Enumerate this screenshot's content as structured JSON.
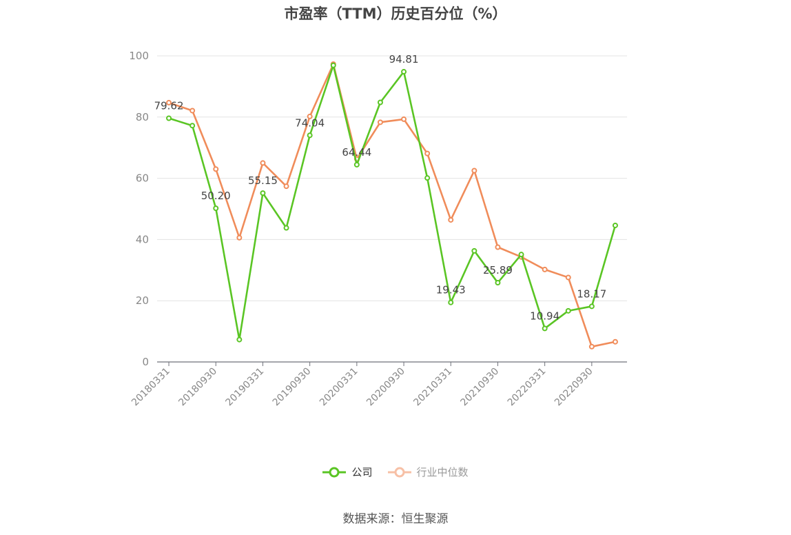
{
  "chart_data": {
    "type": "line",
    "title": "市盈率（TTM）历史百分位（%）",
    "source": "数据来源：恒生聚源",
    "ylim": [
      0,
      100
    ],
    "yticks": [
      0,
      20,
      40,
      60,
      80,
      100
    ],
    "grid": true,
    "legend_position": "bottom",
    "x": [
      "20180331",
      "20180630",
      "20180930",
      "20181231",
      "20190331",
      "20190630",
      "20190930",
      "20191231",
      "20200331",
      "20200630",
      "20200930",
      "20201231",
      "20210331",
      "20210630",
      "20210930",
      "20211231",
      "20220331",
      "20220630",
      "20220930",
      "20221231"
    ],
    "x_tick_labels": [
      "20180331",
      "20180930",
      "20190331",
      "20190930",
      "20200331",
      "20200930",
      "20210331",
      "20210930",
      "20220331",
      "20220930"
    ],
    "series": [
      {
        "name": "公司",
        "color": "#5ac524",
        "values": [
          79.62,
          77.2,
          50.2,
          7.3,
          55.15,
          43.8,
          74.04,
          96.9,
          64.44,
          84.8,
          94.81,
          60.1,
          19.43,
          36.3,
          25.89,
          35.1,
          10.94,
          16.7,
          18.17,
          44.6
        ],
        "labels": [
          "79.62",
          null,
          "50.20",
          null,
          "55.15",
          null,
          "74.04",
          null,
          "64.44",
          null,
          "94.81",
          null,
          "19.43",
          null,
          "25.89",
          null,
          "10.94",
          null,
          "18.17",
          null
        ]
      },
      {
        "name": "行业中位数",
        "color": "#f08c5a",
        "values": [
          84.7,
          82.1,
          63.0,
          40.6,
          65.0,
          57.4,
          80.2,
          97.3,
          66.3,
          78.3,
          79.3,
          68.1,
          46.4,
          62.5,
          37.5,
          34.3,
          30.2,
          27.6,
          5.0,
          6.6
        ]
      }
    ]
  }
}
